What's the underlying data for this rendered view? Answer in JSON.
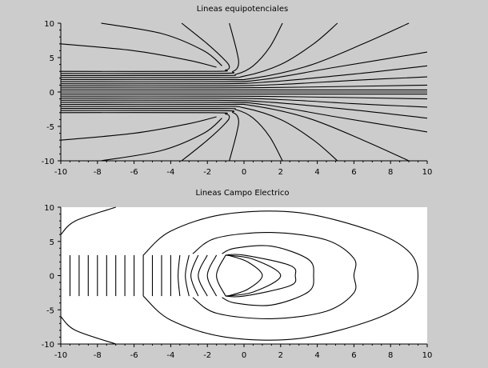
{
  "chart_data": [
    {
      "type": "line",
      "title": "Lineas equipotenciales",
      "xlim": [
        -10,
        10
      ],
      "ylim": [
        -10,
        10
      ],
      "xticks": [
        -10,
        -8,
        -6,
        -4,
        -2,
        0,
        2,
        4,
        6,
        8,
        10
      ],
      "yticks": [
        10,
        5,
        0,
        -5,
        -10
      ],
      "background": "#cccccc",
      "series": [
        {
          "values": [
            [
              -10,
              3.0
            ],
            [
              -1.8,
              3.0
            ],
            [
              -1.0,
              3.2
            ],
            [
              -0.8,
              3.6
            ],
            [
              -1.0,
              4.5
            ],
            [
              -2.0,
              7.0
            ],
            [
              -3.4,
              10
            ]
          ]
        },
        {
          "values": [
            [
              -10,
              2.7
            ],
            [
              -1.5,
              2.7
            ],
            [
              -0.6,
              3.0
            ],
            [
              -0.3,
              4.0
            ],
            [
              -0.4,
              6.0
            ],
            [
              -0.8,
              10
            ]
          ]
        },
        {
          "values": [
            [
              -10,
              2.4
            ],
            [
              -1.5,
              2.4
            ],
            [
              -0.4,
              2.6
            ],
            [
              0.5,
              3.8
            ],
            [
              1.4,
              6.5
            ],
            [
              2.1,
              10
            ]
          ]
        },
        {
          "values": [
            [
              -10,
              2.1
            ],
            [
              -1.5,
              2.1
            ],
            [
              0.0,
              2.3
            ],
            [
              2.0,
              4.0
            ],
            [
              3.8,
              7.0
            ],
            [
              5.1,
              10
            ]
          ]
        },
        {
          "values": [
            [
              -10,
              1.8
            ],
            [
              -1.5,
              1.8
            ],
            [
              0.5,
              2.0
            ],
            [
              3.5,
              3.8
            ],
            [
              6.5,
              7.0
            ],
            [
              9.0,
              10
            ]
          ]
        },
        {
          "values": [
            [
              -10,
              1.5
            ],
            [
              -1.5,
              1.5
            ],
            [
              1.0,
              1.8
            ],
            [
              5.0,
              3.6
            ],
            [
              10,
              5.8
            ]
          ]
        },
        {
          "values": [
            [
              -10,
              1.2
            ],
            [
              -1.5,
              1.2
            ],
            [
              1.5,
              1.5
            ],
            [
              6.0,
              2.6
            ],
            [
              10,
              3.8
            ]
          ]
        },
        {
          "values": [
            [
              -10,
              0.9
            ],
            [
              -1.5,
              0.9
            ],
            [
              2.0,
              1.1
            ],
            [
              6.0,
              1.7
            ],
            [
              10,
              2.2
            ]
          ]
        },
        {
          "values": [
            [
              -10,
              0.6
            ],
            [
              -1.5,
              0.6
            ],
            [
              3.0,
              0.7
            ],
            [
              10,
              1.0
            ]
          ]
        },
        {
          "values": [
            [
              -10,
              0.3
            ],
            [
              -1.5,
              0.3
            ],
            [
              10,
              0.3
            ]
          ]
        },
        {
          "values": [
            [
              -10,
              0.0
            ],
            [
              10,
              0.0
            ]
          ]
        },
        {
          "values": [
            [
              -10,
              -0.3
            ],
            [
              -1.5,
              -0.3
            ],
            [
              10,
              -0.3
            ]
          ]
        },
        {
          "values": [
            [
              -10,
              -0.6
            ],
            [
              -1.5,
              -0.6
            ],
            [
              3.0,
              -0.7
            ],
            [
              10,
              -1.0
            ]
          ]
        },
        {
          "values": [
            [
              -10,
              -0.9
            ],
            [
              -1.5,
              -0.9
            ],
            [
              2.0,
              -1.1
            ],
            [
              6.0,
              -1.7
            ],
            [
              10,
              -2.2
            ]
          ]
        },
        {
          "values": [
            [
              -10,
              -1.2
            ],
            [
              -1.5,
              -1.2
            ],
            [
              1.5,
              -1.5
            ],
            [
              6.0,
              -2.6
            ],
            [
              10,
              -3.8
            ]
          ]
        },
        {
          "values": [
            [
              -10,
              -1.5
            ],
            [
              -1.5,
              -1.5
            ],
            [
              1.0,
              -1.8
            ],
            [
              5.0,
              -3.6
            ],
            [
              10,
              -5.8
            ]
          ]
        },
        {
          "values": [
            [
              -10,
              -1.8
            ],
            [
              -1.5,
              -1.8
            ],
            [
              0.5,
              -2.0
            ],
            [
              3.5,
              -3.8
            ],
            [
              6.5,
              -7.0
            ],
            [
              9.0,
              -10
            ]
          ]
        },
        {
          "values": [
            [
              -10,
              -2.1
            ],
            [
              -1.5,
              -2.1
            ],
            [
              0.0,
              -2.3
            ],
            [
              2.0,
              -4.0
            ],
            [
              3.8,
              -7.0
            ],
            [
              5.1,
              -10
            ]
          ]
        },
        {
          "values": [
            [
              -10,
              -2.4
            ],
            [
              -1.5,
              -2.4
            ],
            [
              -0.4,
              -2.6
            ],
            [
              0.5,
              -3.8
            ],
            [
              1.4,
              -6.5
            ],
            [
              2.1,
              -10
            ]
          ]
        },
        {
          "values": [
            [
              -10,
              -2.7
            ],
            [
              -1.5,
              -2.7
            ],
            [
              -0.6,
              -3.0
            ],
            [
              -0.3,
              -4.0
            ],
            [
              -0.4,
              -6.0
            ],
            [
              -0.8,
              -10
            ]
          ]
        },
        {
          "values": [
            [
              -10,
              -3.0
            ],
            [
              -1.8,
              -3.0
            ],
            [
              -1.0,
              -3.2
            ],
            [
              -0.8,
              -3.6
            ],
            [
              -1.0,
              -4.5
            ],
            [
              -2.0,
              -7.0
            ],
            [
              -3.4,
              -10
            ]
          ]
        },
        {
          "values": [
            [
              -10,
              7.0
            ],
            [
              -6.0,
              6.0
            ],
            [
              -3.0,
              4.6
            ],
            [
              -1.5,
              3.6
            ]
          ]
        },
        {
          "values": [
            [
              -10,
              -7.0
            ],
            [
              -6.0,
              -6.0
            ],
            [
              -3.0,
              -4.6
            ],
            [
              -1.5,
              -3.6
            ]
          ]
        },
        {
          "values": [
            [
              -7.8,
              10
            ],
            [
              -4.5,
              8.5
            ],
            [
              -2.2,
              6.0
            ],
            [
              -1.2,
              3.8
            ]
          ]
        },
        {
          "values": [
            [
              -7.8,
              -10
            ],
            [
              -4.5,
              -8.5
            ],
            [
              -2.2,
              -6.0
            ],
            [
              -1.2,
              -3.8
            ]
          ]
        }
      ]
    },
    {
      "type": "line",
      "title": "Lineas Campo Electrico",
      "xlim": [
        -10,
        10
      ],
      "ylim": [
        -10,
        10
      ],
      "xticks": [
        -10,
        -8,
        -6,
        -4,
        -2,
        0,
        2,
        4,
        6,
        8,
        10
      ],
      "yticks": [
        10,
        5,
        0,
        -5,
        -10
      ],
      "background": "#ffffff",
      "series": [
        {
          "values": [
            [
              -7.0,
              10
            ],
            [
              -9.2,
              8.0
            ],
            [
              -10,
              6.0
            ]
          ]
        },
        {
          "values": [
            [
              -10,
              -6.0
            ],
            [
              -9.2,
              -8.0
            ],
            [
              -7.0,
              -10
            ]
          ]
        },
        {
          "values": [
            [
              -9.5,
              3
            ],
            [
              -9.5,
              -3
            ]
          ]
        },
        {
          "values": [
            [
              -9.0,
              3
            ],
            [
              -9.0,
              -3
            ]
          ]
        },
        {
          "values": [
            [
              -8.5,
              3
            ],
            [
              -8.5,
              -3
            ]
          ]
        },
        {
          "values": [
            [
              -8.0,
              3
            ],
            [
              -8.0,
              -3
            ]
          ]
        },
        {
          "values": [
            [
              -7.5,
              3
            ],
            [
              -7.5,
              -3
            ]
          ]
        },
        {
          "values": [
            [
              -7.0,
              3
            ],
            [
              -7.0,
              -3
            ]
          ]
        },
        {
          "values": [
            [
              -6.5,
              3
            ],
            [
              -6.5,
              -3
            ]
          ]
        },
        {
          "values": [
            [
              -6.0,
              3
            ],
            [
              -6.0,
              -3
            ]
          ]
        },
        {
          "values": [
            [
              -5.5,
              3
            ],
            [
              -5.5,
              -3
            ]
          ]
        },
        {
          "values": [
            [
              -5.0,
              3
            ],
            [
              -5.0,
              -3
            ]
          ]
        },
        {
          "values": [
            [
              -4.5,
              3
            ],
            [
              -4.5,
              -3
            ]
          ]
        },
        {
          "values": [
            [
              -4.0,
              3
            ],
            [
              -4.0,
              -3
            ]
          ]
        },
        {
          "values": [
            [
              -3.5,
              3
            ],
            [
              -3.6,
              0
            ],
            [
              -3.5,
              -3
            ]
          ]
        },
        {
          "values": [
            [
              -3.0,
              3
            ],
            [
              -3.2,
              0
            ],
            [
              -3.0,
              -3
            ]
          ]
        },
        {
          "values": [
            [
              -2.5,
              3
            ],
            [
              -2.9,
              0
            ],
            [
              -2.5,
              -3
            ]
          ]
        },
        {
          "values": [
            [
              -2.0,
              3
            ],
            [
              -2.5,
              0
            ],
            [
              -2.0,
              -3
            ]
          ]
        },
        {
          "values": [
            [
              -1.5,
              3
            ],
            [
              -2.0,
              0
            ],
            [
              -1.5,
              -3
            ]
          ]
        },
        {
          "values": [
            [
              -1.0,
              3
            ],
            [
              -1.5,
              0
            ],
            [
              -1.0,
              -3
            ]
          ]
        },
        {
          "values": [
            [
              -0.9,
              3.0
            ],
            [
              0.2,
              2.0
            ],
            [
              1.0,
              0
            ],
            [
              0.2,
              -2.0
            ],
            [
              -0.9,
              -3.0
            ]
          ]
        },
        {
          "values": [
            [
              -1.0,
              3.0
            ],
            [
              0.5,
              2.4
            ],
            [
              2.0,
              0
            ],
            [
              0.5,
              -2.4
            ],
            [
              -1.0,
              -3.0
            ]
          ]
        },
        {
          "values": [
            [
              -1.0,
              3.0
            ],
            [
              0.0,
              3.0
            ],
            [
              2.5,
              1.5
            ],
            [
              2.8,
              0
            ],
            [
              2.5,
              -1.5
            ],
            [
              0.0,
              -3.0
            ],
            [
              -1.0,
              -3.0
            ]
          ]
        },
        {
          "values": [
            [
              -1.2,
              3.2
            ],
            [
              -0.5,
              4.0
            ],
            [
              1.5,
              4.3
            ],
            [
              3.5,
              2.4
            ],
            [
              3.8,
              0
            ],
            [
              3.5,
              -2.4
            ],
            [
              1.5,
              -4.3
            ],
            [
              -0.5,
              -4.0
            ],
            [
              -1.2,
              -3.2
            ]
          ]
        },
        {
          "values": [
            [
              -2.8,
              3.2
            ],
            [
              -1.5,
              5.5
            ],
            [
              1.5,
              6.3
            ],
            [
              4.5,
              5.2
            ],
            [
              6.0,
              2.5
            ],
            [
              6.0,
              0
            ],
            [
              6.0,
              -2.5
            ],
            [
              4.5,
              -5.2
            ],
            [
              1.5,
              -6.3
            ],
            [
              -1.5,
              -5.5
            ],
            [
              -2.8,
              -3.2
            ]
          ]
        },
        {
          "values": [
            [
              -5.5,
              3.0
            ],
            [
              -4.0,
              6.5
            ],
            [
              -1.0,
              9.0
            ],
            [
              3.0,
              9.2
            ],
            [
              7.0,
              6.5
            ],
            [
              9.0,
              3.5
            ],
            [
              9.5,
              0
            ],
            [
              9.0,
              -3.5
            ],
            [
              7.0,
              -6.5
            ],
            [
              3.0,
              -9.2
            ],
            [
              -1.0,
              -9.0
            ],
            [
              -4.0,
              -6.5
            ],
            [
              -5.5,
              -3.0
            ]
          ]
        }
      ]
    }
  ]
}
